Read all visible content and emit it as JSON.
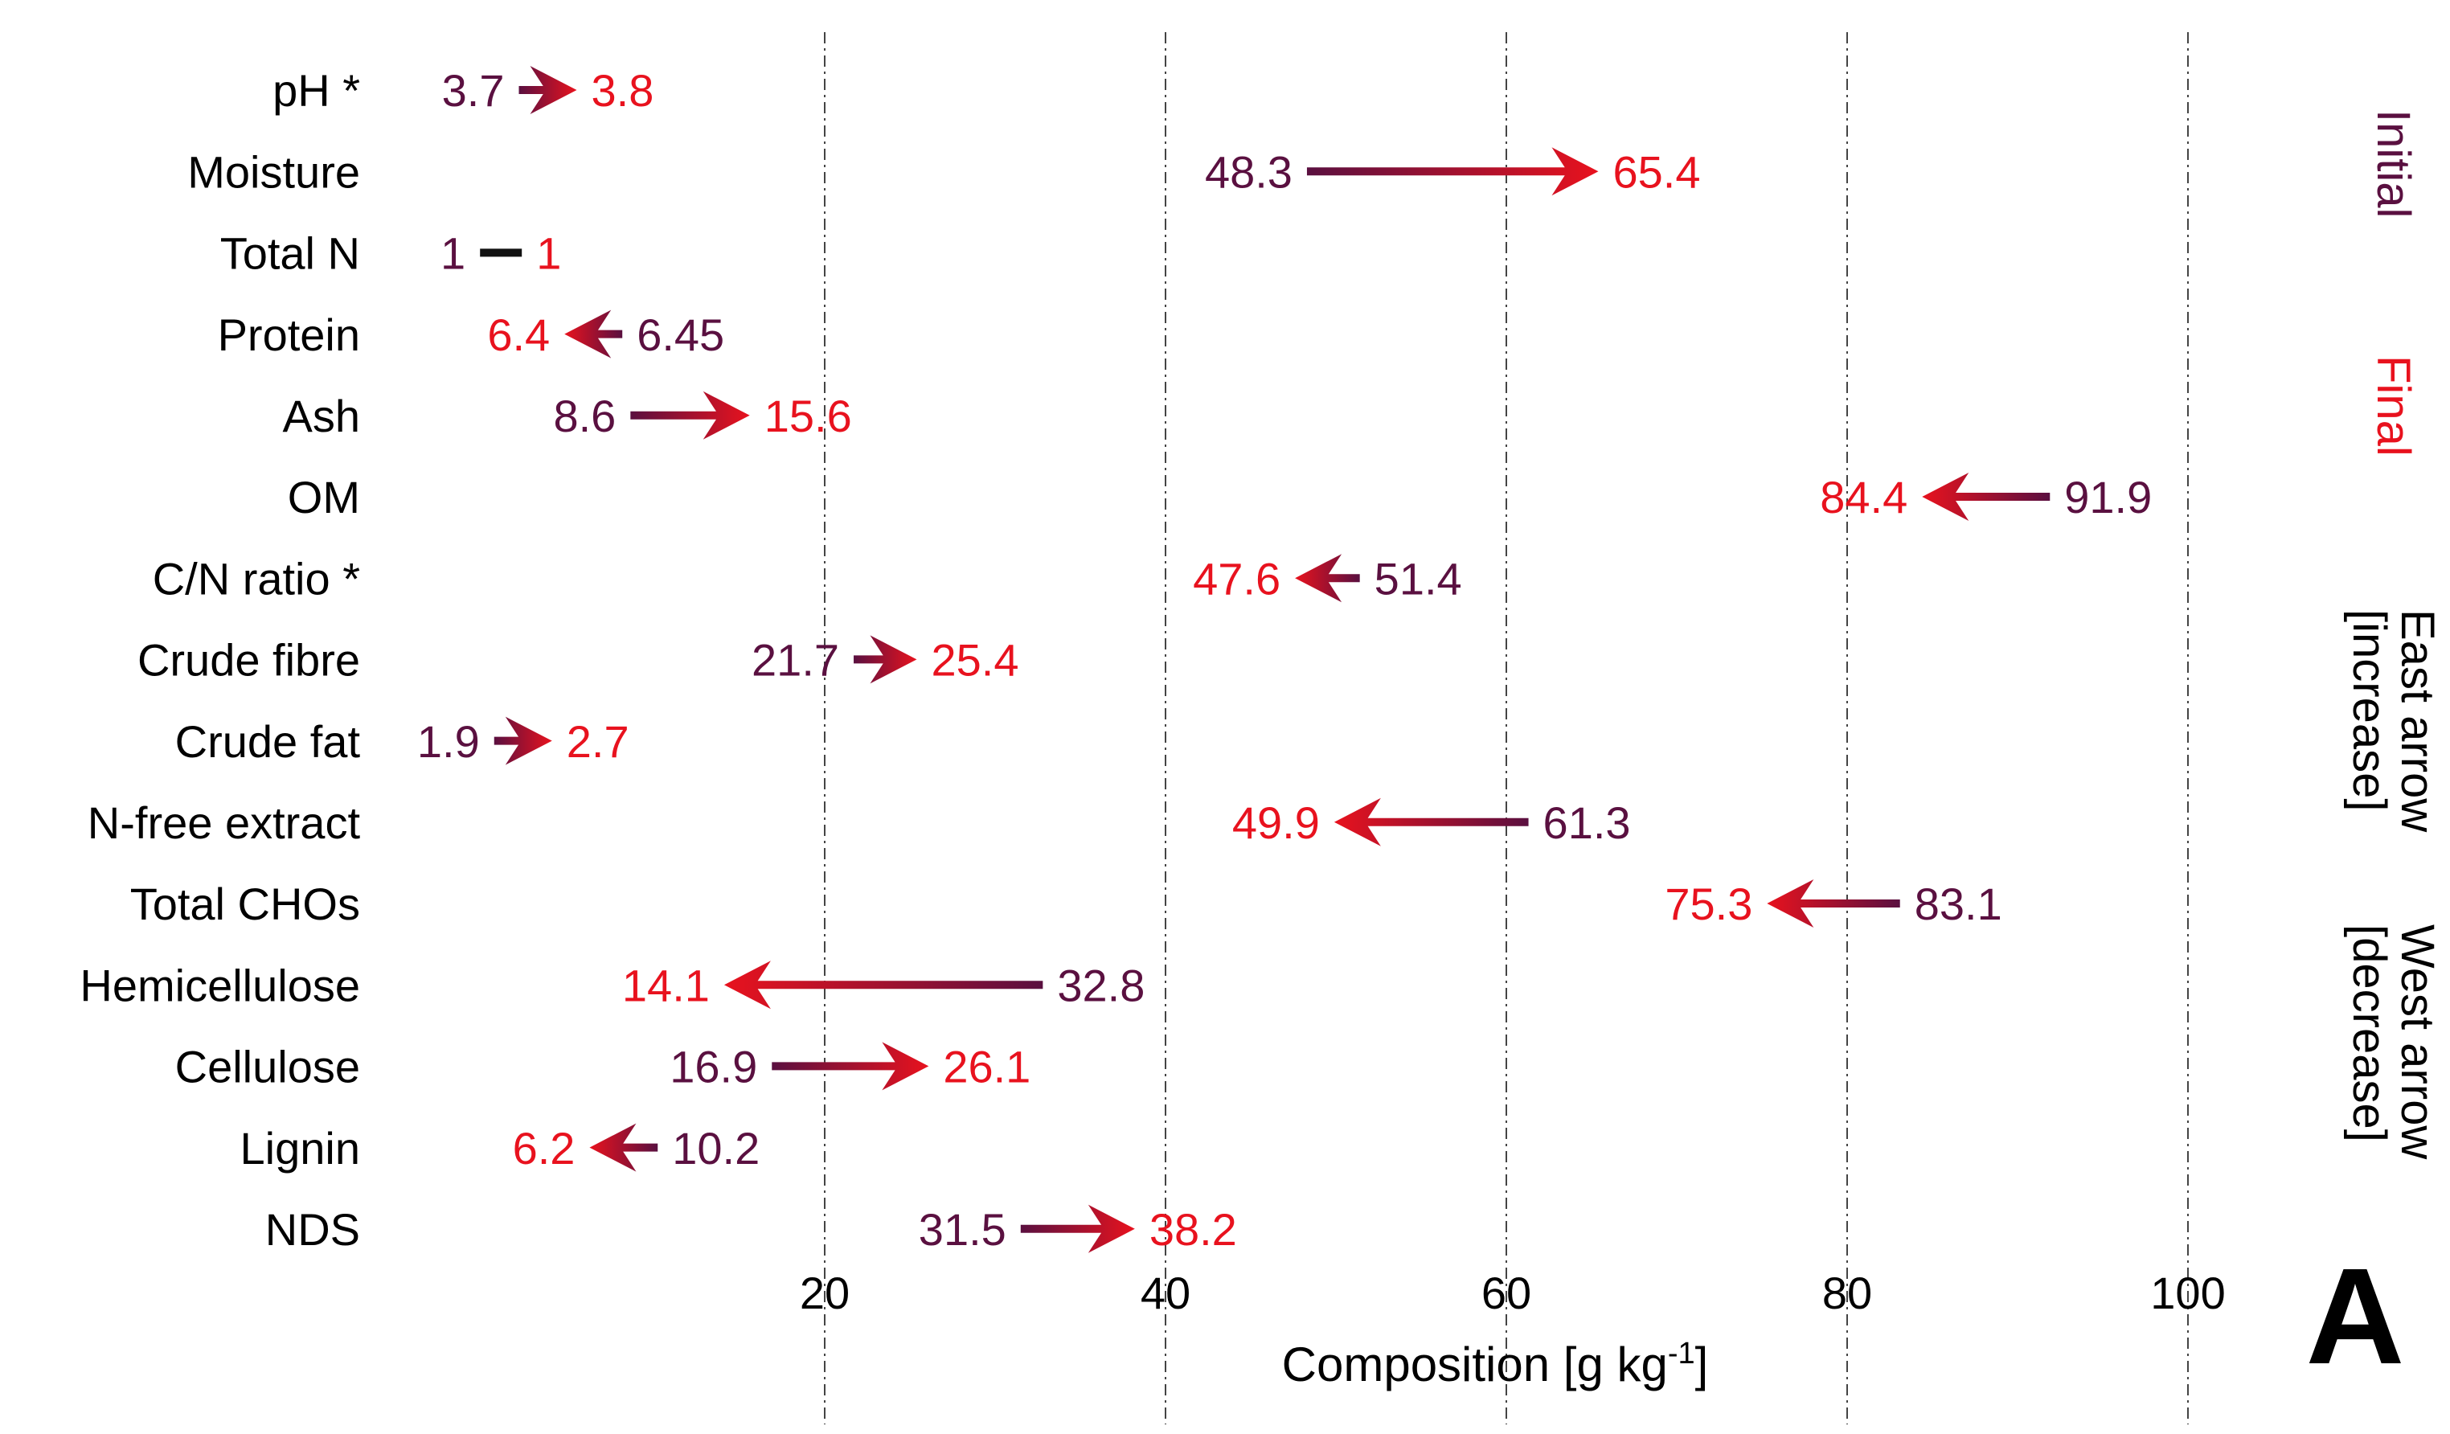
{
  "chart_data": {
    "type": "arrow",
    "title": "",
    "xlabel": "Composition [g kg",
    "xlabel_sup": "-1",
    "xlabel_close": "]",
    "panel_label": "A",
    "x_ticks": [
      20,
      40,
      60,
      80,
      100
    ],
    "grid": "vertical dash-dot lines at x ticks",
    "legend": {
      "initial_label": "Initial",
      "final_label": "Final",
      "east_line1": "East arrow",
      "east_line2": "[increase]",
      "west_line1": "West arrow",
      "west_line2": "[decrease]"
    },
    "colors": {
      "initial": "#5a1040",
      "final": "#e8121e",
      "neutral": "#111111"
    },
    "series_names": [
      "Initial",
      "Final"
    ],
    "rows": [
      {
        "label": "pH *",
        "initial": 3.7,
        "final": 3.8,
        "initial_text": "3.7",
        "final_text": "3.8"
      },
      {
        "label": "Moisture",
        "initial": 48.3,
        "final": 65.4,
        "initial_text": "48.3",
        "final_text": "65.4"
      },
      {
        "label": "Total N",
        "initial": 1,
        "final": 1,
        "initial_text": "1",
        "final_text": "1"
      },
      {
        "label": "Protein",
        "initial": 6.45,
        "final": 6.4,
        "initial_text": "6.45",
        "final_text": "6.4"
      },
      {
        "label": "Ash",
        "initial": 8.6,
        "final": 15.6,
        "initial_text": "8.6",
        "final_text": "15.6"
      },
      {
        "label": "OM",
        "initial": 91.9,
        "final": 84.4,
        "initial_text": "91.9",
        "final_text": "84.4"
      },
      {
        "label": "C/N ratio *",
        "initial": 51.4,
        "final": 47.6,
        "initial_text": "51.4",
        "final_text": "47.6"
      },
      {
        "label": "Crude fibre",
        "initial": 21.7,
        "final": 25.4,
        "initial_text": "21.7",
        "final_text": "25.4"
      },
      {
        "label": "Crude fat",
        "initial": 1.9,
        "final": 2.7,
        "initial_text": "1.9",
        "final_text": "2.7"
      },
      {
        "label": "N-free extract",
        "initial": 61.3,
        "final": 49.9,
        "initial_text": "61.3",
        "final_text": "49.9"
      },
      {
        "label": "Total CHOs",
        "initial": 83.1,
        "final": 75.3,
        "initial_text": "83.1",
        "final_text": "75.3"
      },
      {
        "label": "Hemicellulose",
        "initial": 32.8,
        "final": 14.1,
        "initial_text": "32.8",
        "final_text": "14.1"
      },
      {
        "label": "Cellulose",
        "initial": 16.9,
        "final": 26.1,
        "initial_text": "16.9",
        "final_text": "26.1"
      },
      {
        "label": "Lignin",
        "initial": 10.2,
        "final": 6.2,
        "initial_text": "10.2",
        "final_text": "6.2"
      },
      {
        "label": "NDS",
        "initial": 31.5,
        "final": 38.2,
        "initial_text": "31.5",
        "final_text": "38.2"
      }
    ]
  }
}
